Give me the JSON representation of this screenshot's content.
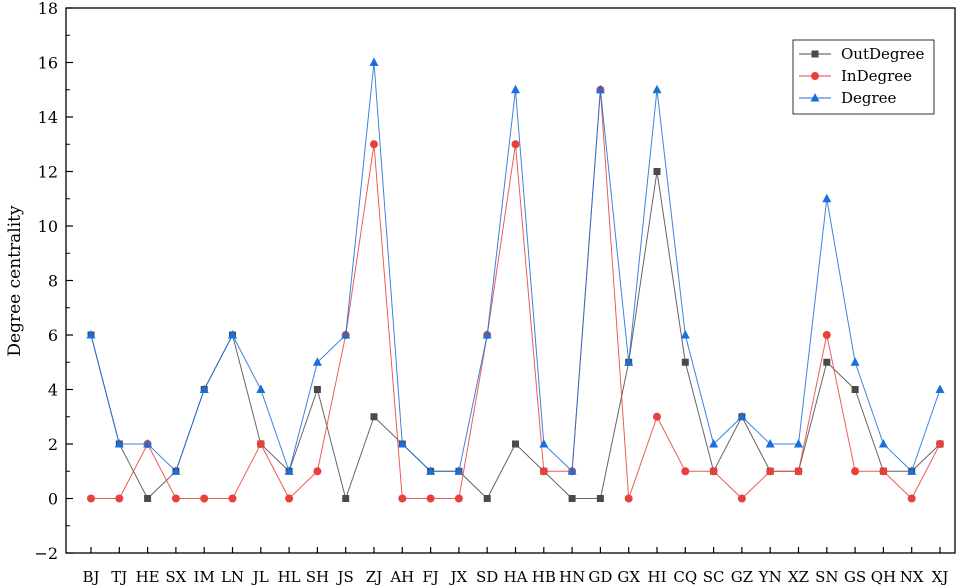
{
  "chart_data": {
    "type": "line",
    "title": "",
    "xlabel": "",
    "ylabel": "Degree centrality",
    "ylim": [
      -2,
      18
    ],
    "yticks": [
      -2,
      0,
      2,
      4,
      6,
      8,
      10,
      12,
      14,
      16,
      18
    ],
    "grid": false,
    "legend_position": "top-right",
    "categories": [
      "BJ",
      "TJ",
      "HE",
      "SX",
      "IM",
      "LN",
      "JL",
      "HL",
      "SH",
      "JS",
      "ZJ",
      "AH",
      "FJ",
      "JX",
      "SD",
      "HA",
      "HB",
      "HN",
      "GD",
      "GX",
      "HI",
      "CQ",
      "SC",
      "GZ",
      "YN",
      "XZ",
      "SN",
      "GS",
      "QH",
      "NX",
      "XJ"
    ],
    "series": [
      {
        "name": "OutDegree",
        "color": "#4a4a4a",
        "marker": "square",
        "values": [
          6,
          2,
          0,
          1,
          4,
          6,
          2,
          1,
          4,
          0,
          3,
          2,
          1,
          1,
          0,
          2,
          1,
          0,
          0,
          5,
          12,
          5,
          1,
          3,
          1,
          1,
          5,
          4,
          1,
          1,
          2
        ]
      },
      {
        "name": "InDegree",
        "color": "#e8413c",
        "marker": "circle",
        "values": [
          0,
          0,
          2,
          0,
          0,
          0,
          2,
          0,
          1,
          6,
          13,
          0,
          0,
          0,
          6,
          13,
          1,
          1,
          15,
          0,
          3,
          1,
          1,
          0,
          1,
          1,
          6,
          1,
          1,
          0,
          2
        ]
      },
      {
        "name": "Degree",
        "color": "#1a6fdb",
        "marker": "triangle",
        "values": [
          6,
          2,
          2,
          1,
          4,
          6,
          4,
          1,
          5,
          6,
          16,
          2,
          1,
          1,
          6,
          15,
          2,
          1,
          15,
          5,
          15,
          6,
          2,
          3,
          2,
          2,
          11,
          5,
          2,
          1,
          4
        ]
      }
    ]
  }
}
